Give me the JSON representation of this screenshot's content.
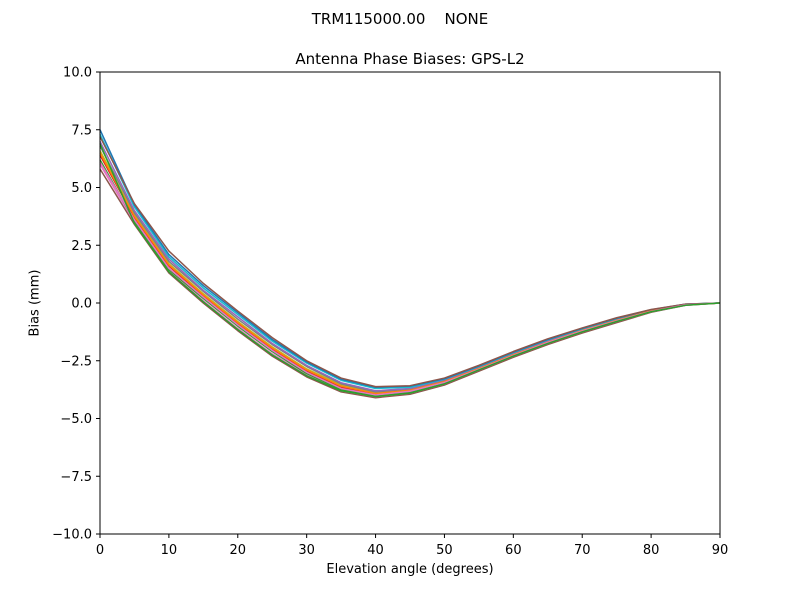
{
  "figure": {
    "suptitle": "TRM115000.00    NONE"
  },
  "chart_data": {
    "type": "line",
    "title": "Antenna Phase Biases: GPS-L2",
    "xlabel": "Elevation angle (degrees)",
    "ylabel": "Bias (mm)",
    "xlim": [
      0,
      90
    ],
    "ylim": [
      -10,
      10
    ],
    "xticks": [
      0,
      10,
      20,
      30,
      40,
      50,
      60,
      70,
      80,
      90
    ],
    "yticks": [
      -10.0,
      -7.5,
      -5.0,
      -2.5,
      0.0,
      2.5,
      5.0,
      7.5,
      10.0
    ],
    "xtick_labels": [
      "0",
      "10",
      "20",
      "30",
      "40",
      "50",
      "60",
      "70",
      "80",
      "90"
    ],
    "ytick_labels": [
      "−10.0",
      "−7.5",
      "−5.0",
      "−2.5",
      "0.0",
      "2.5",
      "5.0",
      "7.5",
      "10.0"
    ],
    "grid": false,
    "legend": "none",
    "x": [
      0,
      5,
      10,
      15,
      20,
      25,
      30,
      35,
      40,
      45,
      50,
      55,
      60,
      65,
      70,
      75,
      80,
      85,
      90
    ],
    "series": [
      {
        "color": "#8c564b",
        "values": [
          5.8,
          3.4,
          1.3,
          0.0,
          -1.2,
          -2.3,
          -3.2,
          -3.85,
          -4.1,
          -3.95,
          -3.55,
          -2.95,
          -2.35,
          -1.8,
          -1.3,
          -0.85,
          -0.4,
          -0.1,
          0.0
        ]
      },
      {
        "color": "#e377c2",
        "values": [
          6.0,
          3.5,
          1.4,
          0.1,
          -1.1,
          -2.2,
          -3.1,
          -3.8,
          -4.05,
          -3.9,
          -3.5,
          -2.9,
          -2.3,
          -1.75,
          -1.25,
          -0.8,
          -0.38,
          -0.1,
          0.0
        ]
      },
      {
        "color": "#2ca02c",
        "values": [
          6.2,
          3.55,
          1.45,
          0.2,
          -1.0,
          -2.1,
          -3.05,
          -3.75,
          -4.0,
          -3.85,
          -3.45,
          -2.88,
          -2.28,
          -1.72,
          -1.22,
          -0.78,
          -0.36,
          -0.08,
          0.0
        ]
      },
      {
        "color": "#d62728",
        "values": [
          6.4,
          3.7,
          1.6,
          0.3,
          -0.9,
          -2.0,
          -2.95,
          -3.65,
          -3.95,
          -3.8,
          -3.42,
          -2.85,
          -2.25,
          -1.7,
          -1.2,
          -0.76,
          -0.35,
          -0.08,
          0.0
        ]
      },
      {
        "color": "#bcbd22",
        "values": [
          6.6,
          3.8,
          1.7,
          0.4,
          -0.8,
          -1.9,
          -2.85,
          -3.55,
          -3.9,
          -3.75,
          -3.38,
          -2.82,
          -2.22,
          -1.68,
          -1.18,
          -0.74,
          -0.34,
          -0.07,
          0.0
        ]
      },
      {
        "color": "#7f7f7f",
        "values": [
          6.8,
          3.9,
          1.8,
          0.5,
          -0.7,
          -1.8,
          -2.75,
          -3.5,
          -3.85,
          -3.72,
          -3.35,
          -2.8,
          -2.2,
          -1.65,
          -1.16,
          -0.72,
          -0.33,
          -0.07,
          0.0
        ]
      },
      {
        "color": "#9467bd",
        "values": [
          7.0,
          4.0,
          1.9,
          0.55,
          -0.6,
          -1.75,
          -2.7,
          -3.45,
          -3.8,
          -3.7,
          -3.32,
          -2.78,
          -2.18,
          -1.63,
          -1.14,
          -0.7,
          -0.32,
          -0.06,
          0.0
        ]
      },
      {
        "color": "#17becf",
        "values": [
          7.3,
          4.15,
          2.0,
          0.65,
          -0.5,
          -1.65,
          -2.6,
          -3.35,
          -3.7,
          -3.65,
          -3.3,
          -2.75,
          -2.15,
          -1.6,
          -1.12,
          -0.68,
          -0.3,
          -0.06,
          0.0
        ]
      },
      {
        "color": "#1f77b4",
        "values": [
          7.5,
          4.25,
          2.1,
          0.75,
          -0.42,
          -1.58,
          -2.55,
          -3.3,
          -3.65,
          -3.6,
          -3.28,
          -2.73,
          -2.13,
          -1.58,
          -1.1,
          -0.66,
          -0.29,
          -0.05,
          0.0
        ]
      },
      {
        "color": "#ff7f0e",
        "values": [
          6.5,
          3.75,
          1.65,
          0.35,
          -0.85,
          -1.95,
          -2.9,
          -3.6,
          -3.92,
          -3.78,
          -3.4,
          -2.84,
          -2.24,
          -1.69,
          -1.19,
          -0.75,
          -0.34,
          -0.08,
          0.0
        ]
      },
      {
        "color": "#8c564b",
        "values": [
          7.2,
          4.3,
          2.25,
          0.85,
          -0.35,
          -1.5,
          -2.5,
          -3.25,
          -3.62,
          -3.58,
          -3.25,
          -2.7,
          -2.1,
          -1.55,
          -1.08,
          -0.64,
          -0.28,
          -0.05,
          0.0
        ]
      },
      {
        "color": "#e377c2",
        "values": [
          6.1,
          3.6,
          1.5,
          0.25,
          -0.95,
          -2.05,
          -3.0,
          -3.7,
          -3.98,
          -3.82,
          -3.44,
          -2.87,
          -2.27,
          -1.71,
          -1.21,
          -0.77,
          -0.36,
          -0.08,
          0.0
        ]
      },
      {
        "color": "#2ca02c",
        "values": [
          6.9,
          3.45,
          1.35,
          0.05,
          -1.15,
          -2.25,
          -3.15,
          -3.8,
          -4.05,
          -3.9,
          -3.5,
          -2.9,
          -2.3,
          -1.75,
          -1.25,
          -0.8,
          -0.38,
          -0.1,
          0.0
        ]
      }
    ]
  }
}
